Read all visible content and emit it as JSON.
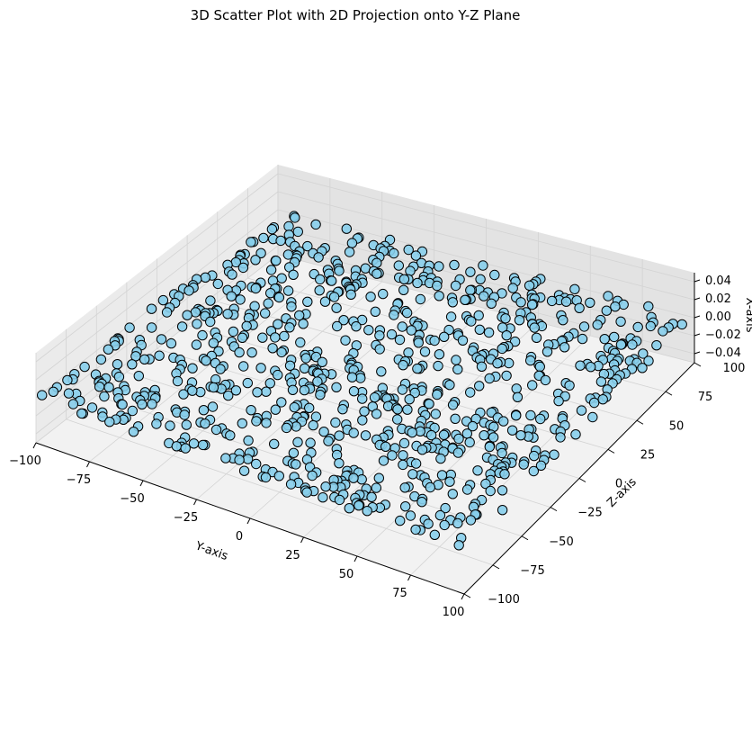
{
  "chart_data": {
    "type": "scatter",
    "projection": "3d",
    "title": "3D Scatter Plot with 2D Projection onto Y-Z Plane",
    "xlabel": "Y-axis",
    "ylabel": "Z-axis",
    "zlabel": "X-axis",
    "xlim": [
      -100,
      100
    ],
    "ylim": [
      -100,
      100
    ],
    "zlim": [
      -0.05,
      0.05
    ],
    "x_ticks": [
      -100,
      -75,
      -50,
      -25,
      0,
      25,
      50,
      75,
      100
    ],
    "y_ticks": [
      -100,
      -75,
      -50,
      -25,
      0,
      25,
      50,
      75,
      100
    ],
    "z_ticks": [
      -0.04,
      -0.02,
      0.0,
      0.02,
      0.04
    ],
    "x_tick_labels": [
      "−100",
      "−75",
      "−50",
      "−25",
      "0",
      "25",
      "50",
      "75",
      "100"
    ],
    "y_tick_labels": [
      "−100",
      "−75",
      "−50",
      "−25",
      "0",
      "25",
      "50",
      "75",
      "100"
    ],
    "z_tick_labels": [
      "−0.04",
      "−0.02",
      "0.00",
      "0.02",
      "0.04"
    ],
    "grid": true,
    "point_count": 900,
    "point_z": 0,
    "distribution": "uniform random over [-100, 100] × [-100, 100]",
    "colors": {
      "marker_fill": "#87CEEB",
      "marker_edge": "#000000",
      "pane": "#F2F2F2",
      "grid": "#D3D3D3"
    }
  }
}
